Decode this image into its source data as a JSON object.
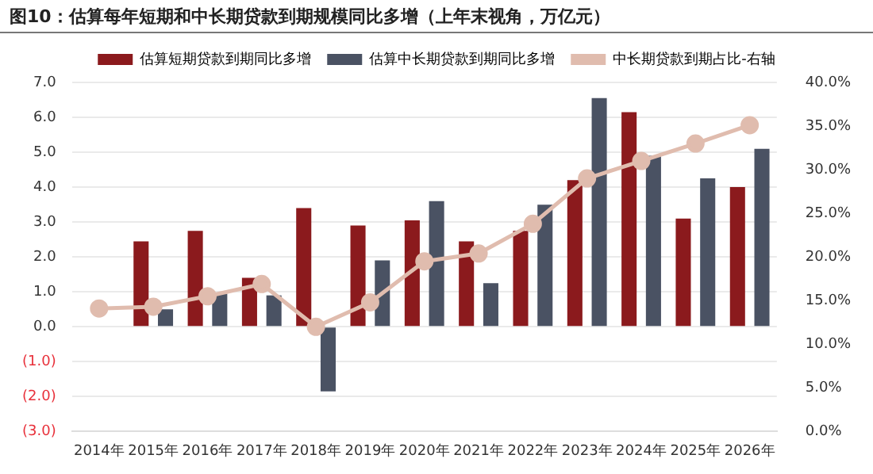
{
  "chart_data": {
    "type": "bar",
    "title": "图10：估算每年短期和中长期贷款到期规模同比多增（上年末视角，万亿元）",
    "categories": [
      "2014年",
      "2015年",
      "2016年",
      "2017年",
      "2018年",
      "2019年",
      "2020年",
      "2021年",
      "2022年",
      "2023年",
      "2024年",
      "2025年",
      "2026年"
    ],
    "series": [
      {
        "name": "估算短期贷款到期同比多增",
        "color": "#8b1a1d",
        "values": [
          null,
          2.45,
          2.75,
          1.4,
          3.4,
          2.9,
          3.05,
          2.45,
          2.75,
          4.2,
          6.15,
          3.1,
          4.0
        ]
      },
      {
        "name": "估算中长期贷款到期同比多增",
        "color": "#4a5263",
        "values": [
          null,
          0.5,
          0.95,
          0.9,
          -1.85,
          1.9,
          3.6,
          1.25,
          3.5,
          6.55,
          4.9,
          4.25,
          5.1
        ]
      },
      {
        "name": "中长期贷款到期占比-右轴",
        "type": "line",
        "axis": "y2",
        "color": "#e0bcae",
        "marker": "circle",
        "values": [
          14.1,
          14.3,
          15.5,
          16.9,
          12.0,
          14.8,
          19.5,
          20.4,
          23.8,
          29.0,
          31.0,
          33.0,
          35.1
        ]
      }
    ],
    "ylim": [
      -3,
      7
    ],
    "yticks": [
      {
        "value": -3,
        "label": "(3.0)"
      },
      {
        "value": -2,
        "label": "(2.0)"
      },
      {
        "value": -1,
        "label": "(1.0)"
      },
      {
        "value": 0,
        "label": "0.0"
      },
      {
        "value": 1,
        "label": "1.0"
      },
      {
        "value": 2,
        "label": "2.0"
      },
      {
        "value": 3,
        "label": "3.0"
      },
      {
        "value": 4,
        "label": "4.0"
      },
      {
        "value": 5,
        "label": "5.0"
      },
      {
        "value": 6,
        "label": "6.0"
      },
      {
        "value": 7,
        "label": "7.0"
      }
    ],
    "y2lim": [
      0,
      40
    ],
    "y2ticks": [
      {
        "value": 0,
        "label": "0.0%"
      },
      {
        "value": 5,
        "label": "5.0%"
      },
      {
        "value": 10,
        "label": "10.0%"
      },
      {
        "value": 15,
        "label": "15.0%"
      },
      {
        "value": 20,
        "label": "20.0%"
      },
      {
        "value": 25,
        "label": "25.0%"
      },
      {
        "value": 30,
        "label": "30.0%"
      },
      {
        "value": 35,
        "label": "35.0%"
      },
      {
        "value": 40,
        "label": "40.0%"
      }
    ],
    "grid": "y",
    "legend": "top"
  }
}
